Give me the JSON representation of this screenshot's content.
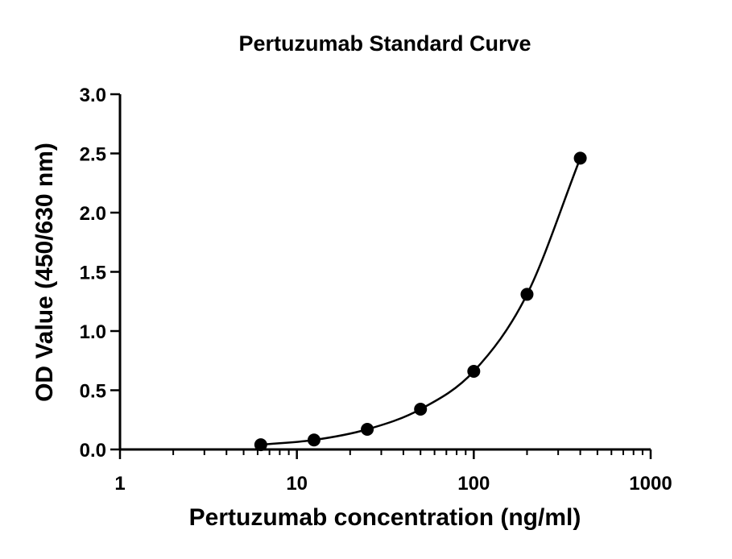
{
  "chart_data": {
    "type": "scatter",
    "title": "Pertuzumab Standard Curve",
    "xlabel": "Pertuzumab concentration (ng/ml)",
    "ylabel": "OD Value (450/630 nm)",
    "xscale": "log",
    "xlim": [
      1,
      1000
    ],
    "ylim": [
      0,
      3.0
    ],
    "x_ticks": [
      1,
      10,
      100,
      1000
    ],
    "x_tick_labels": [
      "1",
      "10",
      "100",
      "1000"
    ],
    "y_ticks": [
      0,
      0.5,
      1.0,
      1.5,
      2.0,
      2.5,
      3.0
    ],
    "y_tick_labels": [
      "0.0",
      "0.5",
      "1.0",
      "1.5",
      "2.0",
      "2.5",
      "3.0"
    ],
    "grid": false,
    "fit_curve": true,
    "series": [
      {
        "x": [
          6.25,
          12.5,
          25,
          50,
          100,
          200,
          400
        ],
        "y": [
          0.04,
          0.08,
          0.17,
          0.34,
          0.66,
          1.31,
          2.46
        ]
      }
    ]
  }
}
